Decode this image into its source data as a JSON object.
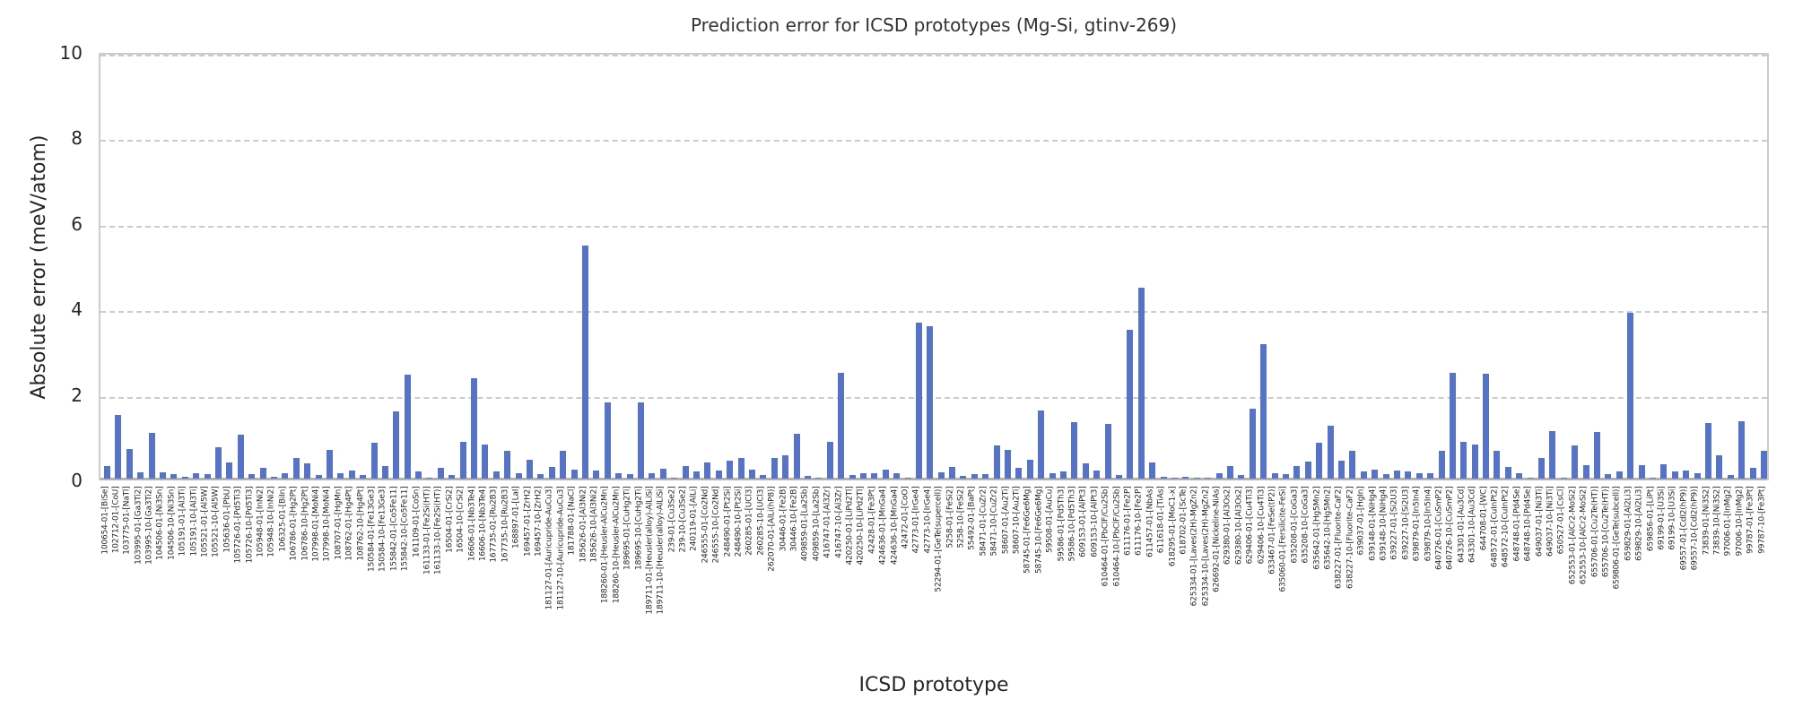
{
  "figure": {
    "title": "Prediction error for ICSD prototypes (Mg-Si, gtinv-269)",
    "xlabel": "ICSD prototype",
    "ylabel": "Absolute error (meV/atom)"
  },
  "colors": {
    "bar": "#5673c8",
    "grid": "#cccccc",
    "spine": "#cccccc",
    "baseline": "#b3b3b3",
    "text": "#262626",
    "title_text": "#333333",
    "background": "#ffffff"
  },
  "chart_data": {
    "type": "bar",
    "title": "Prediction error for ICSD prototypes (Mg-Si, gtinv-269)",
    "xlabel": "ICSD prototype",
    "ylabel": "Absolute error (meV/atom)",
    "ylim": [
      0,
      10
    ],
    "yticks": [
      0,
      2,
      4,
      6,
      8,
      10
    ],
    "grid": "horizontal-dashed",
    "legend": "none",
    "categories": [
      "100654-01-[BiSe]",
      "102712-01-[CoU]",
      "103775-01-[NaTl]",
      "103995-01-[Ga3Ti2]",
      "103995-10-[Ga3Ti2]",
      "104506-01-[Ni3Sn]",
      "104506-10-[Ni3Sn]",
      "105191-01-[Al3Ti]",
      "105191-10-[Al3Ti]",
      "105521-01-[Al5W]",
      "105521-10-[Al5W]",
      "105636-01-[PbU]",
      "105726-01-[Pd5Ti3]",
      "105726-10-[Pd5Ti3]",
      "105948-01-[InNi2]",
      "105948-10-[InNi2]",
      "106325-01-[BiIn]",
      "106786-01-[Hg2Pt]",
      "106786-10-[Hg2Pt]",
      "107998-01-[MoNi4]",
      "107998-10-[MoNi4]",
      "108707-01-[HgMn]",
      "108762-01-[Hg4Pt]",
      "108762-10-[Hg4Pt]",
      "150584-01-[Fe13Ge3]",
      "150584-10-[Fe13Ge3]",
      "155842-01-[Co5Fe11]",
      "155842-10-[Co5Fe11]",
      "161109-01-[CoSn]",
      "161133-01-[Fe2Si(HT)]",
      "161133-10-[Fe2Si(HT)]",
      "16504-01-[CrSi2]",
      "16504-10-[CrSi2]",
      "16606-01-[Nb3Te4]",
      "16606-10-[Nb3Te4]",
      "167735-01-[Ru2B3]",
      "167735-10-[Ru2B3]",
      "168897-01-[LaI]",
      "169457-01-[ZrH2]",
      "169457-10-[ZrH2]",
      "181127-01-[Auricupride-AuCu3]",
      "181127-10-[Auricupride-AuCu3]",
      "181788-01-[NaCl]",
      "185626-01-[Al3Ni2]",
      "185626-10-[Al3Ni2]",
      "188260-01-[Heusler-AlCu2Mn]",
      "188260-10-[Heusler-AlCu2Mn]",
      "189695-01-[CuHg2Ti]",
      "189695-10-[CuHg2Ti]",
      "189711-01-[Heusler(alloy)-AlLiSi]",
      "189711-10-[Heusler(alloy)-AlLiSi]",
      "239-01-[Cu3Se2]",
      "239-10-[Cu3Se2]",
      "240119-01-[AlLi]",
      "246555-01-[Co2Nd]",
      "246555-10-[Co2Nd]",
      "248490-01-[Pt2Si]",
      "248490-10-[Pt2Si]",
      "260285-01-[UCl3]",
      "260285-10-[UCl3]",
      "262070-01-[AlLi(hP8)]",
      "30446-01-[Fe2B]",
      "30446-10-[Fe2B]",
      "409859-01-[La2Sb]",
      "409859-10-[La2Sb]",
      "416747-01-[Al3Zr]",
      "416747-10-[Al3Zr]",
      "420250-01-[LiPd2Tl]",
      "420250-10-[LiPd2Tl]",
      "42428-01-[Fe3Pt]",
      "424636-01-[MnGa4]",
      "424636-10-[MnGa4]",
      "42472-01-[CoO]",
      "42773-01-[IrGe4]",
      "42773-10-[IrGe4]",
      "52294-01-[GeTe(supercell)]",
      "5258-01-[FeSi2]",
      "5258-10-[FeSi2]",
      "55492-01-[BaPt]",
      "58471-01-[CuZr2]",
      "58471-10-[CuZr2]",
      "58607-01-[Au2Ti]",
      "58607-10-[Au2Ti]",
      "58745-01-[Fe6Ge6Mg]",
      "58745-10-[Fe6Ge6Mg]",
      "59508-01-[AuCu]",
      "59586-01-[Pd5Th3]",
      "59586-10-[Pd5Th3]",
      "609153-01-[AlPt3]",
      "609153-10-[AlPt3]",
      "610464-01-[PbClF/Cu2Sb]",
      "610464-10-[PbClF/Cu2Sb]",
      "611176-01-[Fe2P]",
      "611176-10-[Fe2P]",
      "611457-01-[NbAs]",
      "611618-01-[TiAs]",
      "618295-01-[MoC1-x]",
      "618702-01-[ScTe]",
      "625334-01-[Laves(2H)-MgZn2]",
      "625334-10-[Laves(2H)-MgZn2]",
      "626692-01-[Nickeline-NiAs]",
      "629380-01-[Al3Os2]",
      "629380-10-[Al3Os2]",
      "629406-01-[Cu4Ti3]",
      "629406-10-[Cu4Ti3]",
      "633467-01-[FeSe(tP2)]",
      "635060-01-[Fersilicite-FeSi]",
      "635208-01-[CoGa3]",
      "635208-10-[CoGa3]",
      "635642-01-[Hg5Mn2]",
      "635642-10-[Hg5Mn2]",
      "638227-01-[Fluorite-CaF2]",
      "638227-10-[Fluorite-CaF2]",
      "639037-01-[HgIn]",
      "639148-01-[NiHg4]",
      "639148-10-[NiHg4]",
      "639227-01-[Si2U3]",
      "639227-10-[Si2U3]",
      "639879-01-[In5In4]",
      "639879-10-[In5In4]",
      "640726-01-[CuSmP2]",
      "640726-10-[CuSmP2]",
      "643301-01-[Au3Cd]",
      "643301-10-[Au3Cd]",
      "644708-01-[WC]",
      "648572-01-[CuInPt2]",
      "648572-10-[CuInPt2]",
      "648748-01-[Pd4Se]",
      "648748-10-[Pd4Se]",
      "649037-01-[Ni3Ti]",
      "649037-10-[Ni3Ti]",
      "650527-01-[CsCl]",
      "652553-01-[AlCr2-MoSi2]",
      "652553-10-[AlCr2-MoSi2]",
      "655706-01-[Cu2Te(HT)]",
      "655706-10-[Cu2Te(HT)]",
      "659806-01-[GeTe(subcell)]",
      "659829-01-[Al2Li3]",
      "659829-10-[Al2Li3]",
      "659856-01-[LiPt]",
      "69199-01-[U3Si]",
      "69199-10-[U3Si]",
      "69557-01-[CdI2(hP9)]",
      "69557-10-[CdI2(hP9)]",
      "73839-01-[Ni3S2]",
      "73839-10-[Ni3S2]",
      "97006-01-[InMg2]",
      "97006-10-[InMg2]",
      "99787-01-[Fe3Pt]",
      "99787-10-[Fe3Pt]"
    ],
    "values": [
      0.3,
      1.48,
      0.7,
      0.14,
      1.07,
      0.14,
      0.1,
      0.05,
      0.12,
      0.1,
      0.74,
      0.37,
      1.03,
      0.11,
      0.26,
      0.04,
      0.13,
      0.49,
      0.35,
      0.08,
      0.68,
      0.12,
      0.19,
      0.09,
      0.83,
      0.3,
      1.57,
      2.44,
      0.16,
      0.03,
      0.26,
      0.08,
      0.87,
      2.34,
      0.8,
      0.17,
      0.65,
      0.12,
      0.45,
      0.1,
      0.28,
      0.65,
      0.22,
      5.45,
      0.19,
      1.78,
      0.12,
      0.11,
      1.78,
      0.12,
      0.23,
      0.02,
      0.3,
      0.16,
      0.37,
      0.18,
      0.43,
      0.48,
      0.21,
      0.08,
      0.48,
      0.55,
      1.05,
      0.06,
      0.03,
      0.87,
      2.48,
      0.08,
      0.12,
      0.12,
      0.21,
      0.12,
      0.02,
      3.64,
      3.56,
      0.15,
      0.28,
      0.06,
      0.1,
      0.1,
      0.77,
      0.68,
      0.26,
      0.44,
      1.59,
      0.13,
      0.16,
      1.32,
      0.36,
      0.19,
      1.27,
      0.09,
      3.47,
      4.47,
      0.37,
      0.04,
      0.03,
      0.04,
      0.03,
      0.02,
      0.12,
      0.3,
      0.08,
      1.63,
      3.14,
      0.12,
      0.1,
      0.29,
      0.39,
      0.84,
      1.23,
      0.42,
      0.65,
      0.17,
      0.21,
      0.1,
      0.19,
      0.17,
      0.13,
      0.13,
      0.65,
      2.47,
      0.85,
      0.8,
      2.46,
      0.65,
      0.27,
      0.12,
      0.02,
      0.48,
      1.11,
      0.02,
      0.78,
      0.31,
      1.08,
      0.11,
      0.16,
      3.88,
      0.31,
      0.02,
      0.33,
      0.17,
      0.18,
      0.12,
      1.31,
      0.54,
      0.08,
      1.35,
      0.26,
      0.64
    ]
  }
}
